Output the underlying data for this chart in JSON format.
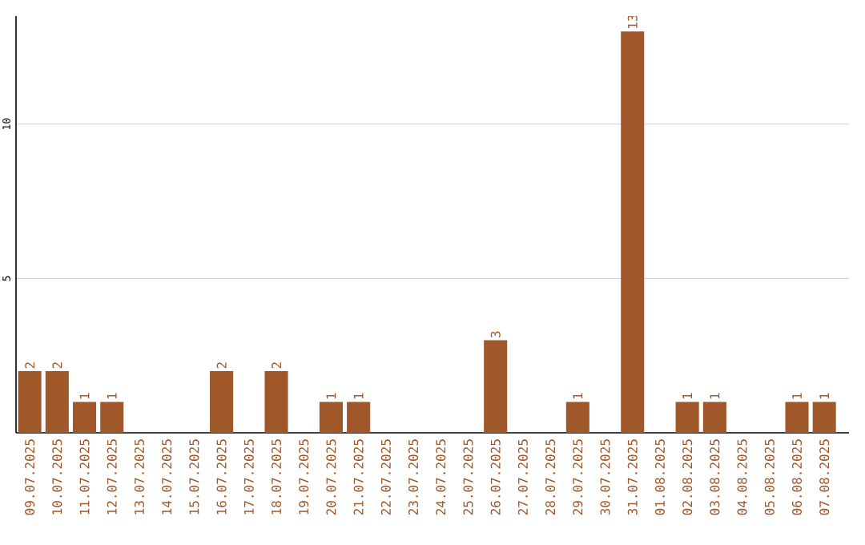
{
  "chart_data": {
    "type": "bar",
    "categories": [
      "09.07.2025",
      "10.07.2025",
      "11.07.2025",
      "12.07.2025",
      "13.07.2025",
      "14.07.2025",
      "15.07.2025",
      "16.07.2025",
      "17.07.2025",
      "18.07.2025",
      "19.07.2025",
      "20.07.2025",
      "21.07.2025",
      "22.07.2025",
      "23.07.2025",
      "24.07.2025",
      "25.07.2025",
      "26.07.2025",
      "27.07.2025",
      "28.07.2025",
      "29.07.2025",
      "30.07.2025",
      "31.07.2025",
      "01.08.2025",
      "02.08.2025",
      "03.08.2025",
      "04.08.2025",
      "05.08.2025",
      "06.08.2025",
      "07.08.2025"
    ],
    "values": [
      2,
      2,
      1,
      1,
      0,
      0,
      0,
      2,
      0,
      2,
      0,
      1,
      1,
      0,
      0,
      0,
      0,
      3,
      0,
      0,
      1,
      0,
      13,
      0,
      1,
      1,
      0,
      0,
      1,
      1
    ],
    "value_labels": [
      "2",
      "2",
      "1",
      "1",
      null,
      null,
      null,
      "2",
      null,
      "2",
      null,
      "1",
      "1",
      null,
      null,
      null,
      null,
      "3",
      null,
      null,
      "1",
      null,
      "13",
      null,
      "1",
      "1",
      null,
      null,
      "1",
      "1"
    ],
    "color": "#a0572a",
    "ylim": [
      0,
      13.5
    ],
    "yticks": [
      5,
      10
    ],
    "grid": "y"
  }
}
